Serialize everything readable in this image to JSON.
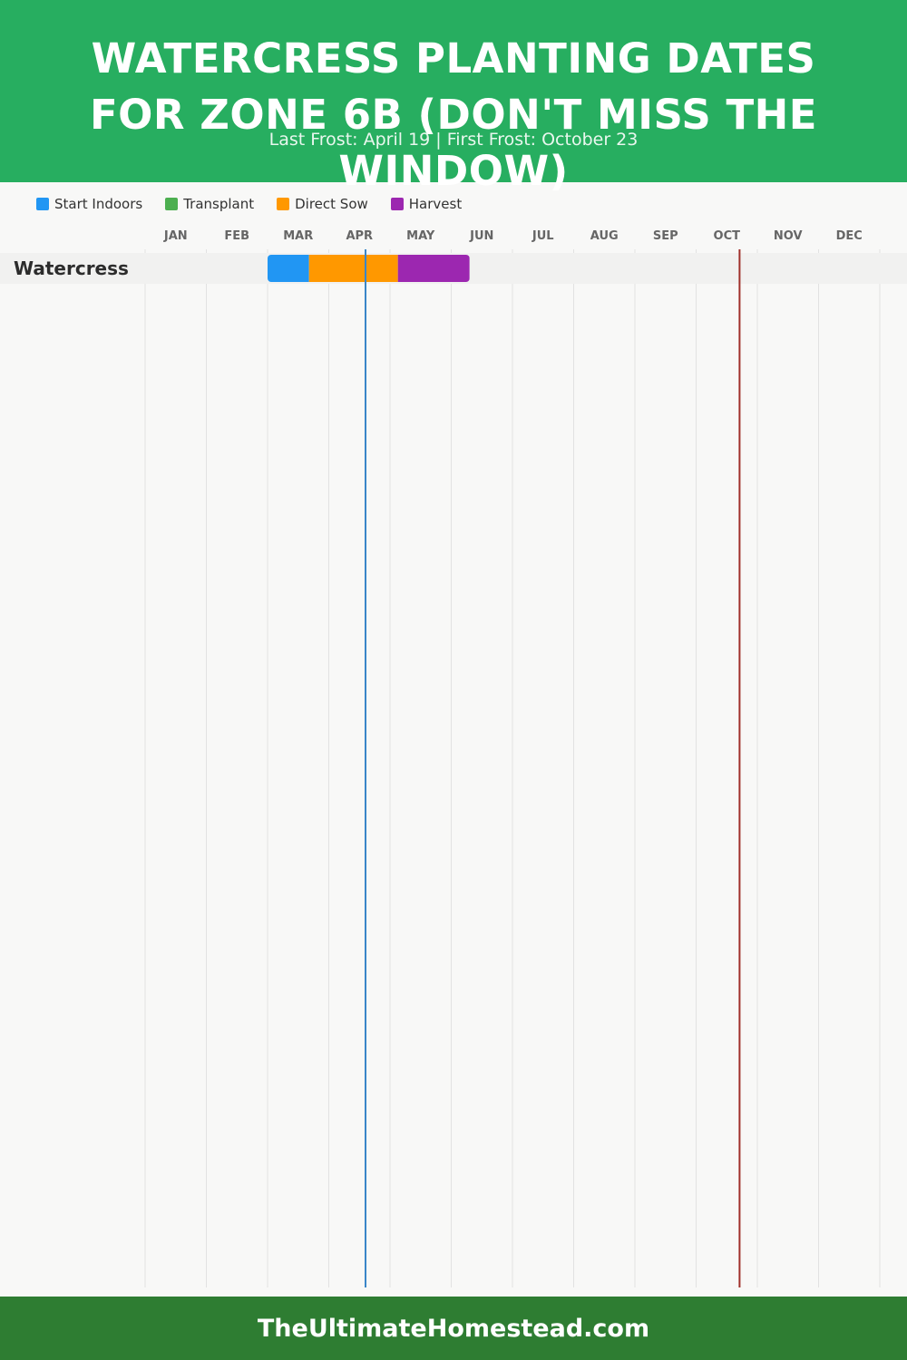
{
  "header": {
    "title": "Watercress Planting Dates for Zone 6B (Don't Miss the Window)",
    "subtitle": "Last Frost: April 19 | First Frost: October 23"
  },
  "footer": {
    "site": "TheUltimateHomestead.com"
  },
  "colors": {
    "header_bg": "#27ae60",
    "footer_bg": "#2e7d32",
    "last_frost_line": "#3a86c8",
    "first_frost_line": "#a0302a"
  },
  "chart_data": {
    "type": "gantt",
    "months": [
      "JAN",
      "FEB",
      "MAR",
      "APR",
      "MAY",
      "JUN",
      "JUL",
      "AUG",
      "SEP",
      "OCT",
      "NOV",
      "DEC"
    ],
    "legend": [
      {
        "name": "Start Indoors",
        "color": "#2196f3"
      },
      {
        "name": "Transplant",
        "color": "#4caf50"
      },
      {
        "name": "Direct Sow",
        "color": "#ff9800"
      },
      {
        "name": "Harvest",
        "color": "#9c27b0"
      }
    ],
    "crops": [
      {
        "name": "Watercress",
        "segments": [
          {
            "phase": "Start Indoors",
            "start": "03-01",
            "end": "03-22"
          },
          {
            "phase": "Direct Sow",
            "start": "03-22",
            "end": "05-05"
          },
          {
            "phase": "Harvest",
            "start": "05-05",
            "end": "06-10"
          }
        ]
      }
    ],
    "frost_lines": [
      {
        "label": "Last Frost",
        "date": "April 19",
        "month": 4,
        "day": 19
      },
      {
        "label": "First Frost",
        "date": "October 23",
        "month": 10,
        "day": 23
      }
    ],
    "grid": true,
    "legend_position": "top-left"
  }
}
